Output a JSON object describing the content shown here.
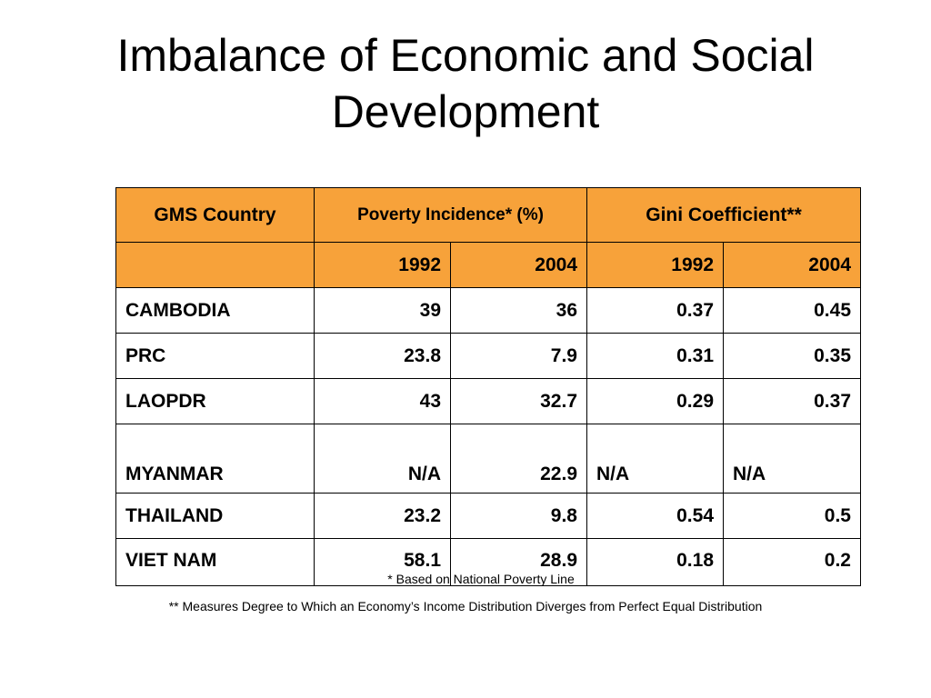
{
  "title": {
    "line1": "Imbalance of Economic and Social",
    "line2": "Development"
  },
  "table": {
    "headers": {
      "country": "GMS Country",
      "poverty": "Poverty Incidence* (%)",
      "gini": "Gini Coefficient**"
    },
    "years": [
      "1992",
      "2004",
      "1992",
      "2004"
    ],
    "rows": [
      {
        "country": "CAMBODIA",
        "pov1992": "39",
        "pov2004": "36",
        "gini1992": "0.37",
        "gini2004": "0.45"
      },
      {
        "country": "PRC",
        "pov1992": "23.8",
        "pov2004": "7.9",
        "gini1992": "0.31",
        "gini2004": "0.35"
      },
      {
        "country": "LAOPDR",
        "pov1992": "43",
        "pov2004": "32.7",
        "gini1992": "0.29",
        "gini2004": "0.37"
      },
      {
        "country": "MYANMAR",
        "pov1992": "N/A",
        "pov2004": "22.9",
        "gini1992": "N/A",
        "gini2004": "N/A"
      },
      {
        "country": "THAILAND",
        "pov1992": "23.2",
        "pov2004": "9.8",
        "gini1992": "0.54",
        "gini2004": "0.5"
      },
      {
        "country": "VIET NAM",
        "pov1992": "58.1",
        "pov2004": "28.9",
        "gini1992": "0.18",
        "gini2004": "0.2"
      }
    ]
  },
  "footnotes": {
    "poverty": "* Based on National Poverty Line",
    "gini": "** Measures Degree to Which an Economy’s Income Distribution Diverges from Perfect Equal Distribution"
  },
  "colors": {
    "header_fill": "#f7a23a"
  }
}
